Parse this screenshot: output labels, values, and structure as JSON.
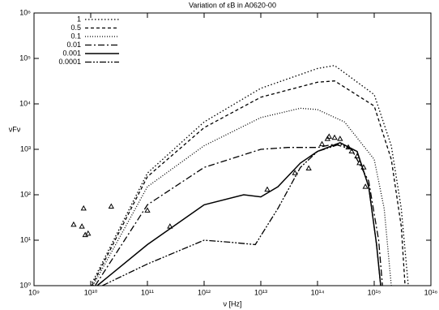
{
  "chart_data": {
    "type": "line",
    "title": "Variation of εB in A0620-00",
    "x_label": "ν [Hz]",
    "y_label": "νFν",
    "xscale": "log",
    "yscale": "log",
    "grid": false,
    "legend": "top-left",
    "xlim": [
      1000000000.0,
      1e+16
    ],
    "ylim": [
      1,
      1000000.0
    ],
    "xticks": [
      {
        "value": 1000000000.0,
        "label": "10⁹"
      },
      {
        "value": 10000000000.0,
        "label": "10¹⁰"
      },
      {
        "value": 100000000000.0,
        "label": "10¹¹"
      },
      {
        "value": 1000000000000.0,
        "label": "10¹²"
      },
      {
        "value": 10000000000000.0,
        "label": "10¹³"
      },
      {
        "value": 100000000000000.0,
        "label": "10¹⁴"
      },
      {
        "value": 1000000000000000.0,
        "label": "10¹⁵"
      },
      {
        "value": 1e+16,
        "label": "10¹⁶"
      }
    ],
    "yticks": [
      {
        "value": 1,
        "label": "10⁰"
      },
      {
        "value": 10,
        "label": "10¹"
      },
      {
        "value": 100,
        "label": "10²"
      },
      {
        "value": 1000,
        "label": "10³"
      },
      {
        "value": 10000,
        "label": "10⁴"
      },
      {
        "value": 100000,
        "label": "10⁵"
      },
      {
        "value": 1000000,
        "label": "10⁶"
      }
    ],
    "series": [
      {
        "name": "1",
        "color": "#000000",
        "dash": "1.5,2.5",
        "width": 1.3,
        "x": [
          10000000000.0,
          100000000000.0,
          1000000000000.0,
          10000000000000.0,
          100000000000000.0,
          200000000000000.0,
          1000000000000000.0,
          2000000000000000.0,
          3000000000000000.0,
          4000000000000000.0
        ],
        "values": [
          1,
          300,
          4000,
          22000,
          60000,
          70000,
          16000,
          1200,
          50,
          1
        ]
      },
      {
        "name": "0.5",
        "color": "#000000",
        "dash": "4,3",
        "width": 1.3,
        "x": [
          10500000000.0,
          100000000000.0,
          1000000000000.0,
          10000000000000.0,
          100000000000000.0,
          200000000000000.0,
          1000000000000000.0,
          2000000000000000.0,
          3000000000000000.0,
          3500000000000000.0
        ],
        "values": [
          1,
          250,
          3000,
          14000,
          30000,
          32000,
          9000,
          600,
          20,
          1
        ]
      },
      {
        "name": "0.1",
        "color": "#000000",
        "dash": "1,2",
        "width": 1.3,
        "x": [
          11000000000.0,
          100000000000.0,
          1000000000000.0,
          10000000000000.0,
          50000000000000.0,
          100000000000000.0,
          300000000000000.0,
          1000000000000000.0,
          1500000000000000.0,
          2000000000000000.0
        ],
        "values": [
          1,
          150,
          1200,
          5000,
          8000,
          7500,
          4000,
          600,
          50,
          1
        ]
      },
      {
        "name": "0.01",
        "color": "#000000",
        "dash": "8,3,2,3",
        "width": 1.3,
        "x": [
          12000000000.0,
          100000000000.0,
          1000000000000.0,
          10000000000000.0,
          30000000000000.0,
          100000000000000.0,
          200000000000000.0,
          400000000000000.0,
          800000000000000.0,
          1200000000000000.0,
          1400000000000000.0
        ],
        "values": [
          1,
          60,
          400,
          1000,
          1100,
          1100,
          1300,
          1000,
          200,
          10,
          1
        ]
      },
      {
        "name": "0.001",
        "color": "#000000",
        "dash": "none",
        "width": 1.5,
        "x": [
          13000000000.0,
          100000000000.0,
          1000000000000.0,
          5000000000000.0,
          10000000000000.0,
          20000000000000.0,
          50000000000000.0,
          100000000000000.0,
          250000000000000.0,
          500000000000000.0,
          800000000000000.0,
          1100000000000000.0,
          1300000000000000.0
        ],
        "values": [
          1,
          8,
          60,
          100,
          90,
          150,
          500,
          900,
          1400,
          900,
          150,
          8,
          1
        ]
      },
      {
        "name": "0.0001",
        "color": "#000000",
        "dash": "8,2,2,2,2,2",
        "width": 1.3,
        "x": [
          16000000000.0,
          100000000000.0,
          1000000000000.0,
          3000000000000.0,
          8000000000000.0,
          20000000000000.0,
          50000000000000.0,
          100000000000000.0,
          250000000000000.0,
          500000000000000.0,
          800000000000000.0,
          1100000000000000.0,
          1300000000000000.0
        ],
        "values": [
          1,
          3,
          10,
          9,
          8,
          50,
          400,
          900,
          1300,
          900,
          150,
          8,
          1
        ]
      }
    ],
    "points": {
      "color": "#000000",
      "x": [
        5000000000.0,
        7000000000.0,
        7500000000.0,
        8000000000.0,
        9000000000.0,
        23000000000.0,
        100000000000.0,
        250000000000.0,
        13000000000000.0,
        40000000000000.0,
        70000000000000.0,
        120000000000000.0,
        150000000000000.0,
        160000000000000.0,
        200000000000000.0,
        250000000000000.0,
        350000000000000.0,
        400000000000000.0,
        500000000000000.0,
        550000000000000.0,
        650000000000000.0,
        700000000000000.0
      ],
      "values": [
        22,
        20,
        50,
        13,
        14,
        55,
        45,
        20,
        130,
        300,
        380,
        1300,
        1700,
        1900,
        1800,
        1700,
        1100,
        900,
        700,
        500,
        400,
        150
      ]
    }
  }
}
